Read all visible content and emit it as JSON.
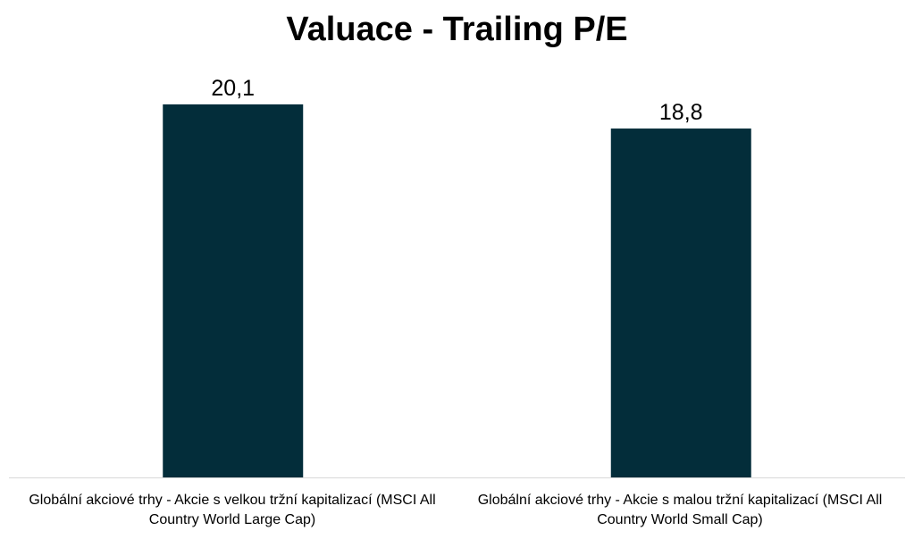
{
  "chart_data": {
    "type": "bar",
    "title": "Valuace - Trailing P/E",
    "xlabel": "",
    "ylabel": "",
    "categories": [
      "Globální akciové trhy - Akcie s velkou tržní kapitalizací (MSCI All Country World Large Cap)",
      "Globální akciové trhy - Akcie s malou tržní kapitalizací (MSCI All Country World Small Cap)"
    ],
    "values": [
      20.1,
      18.8
    ],
    "data_labels": [
      "20,1",
      "18,8"
    ],
    "ylim": [
      0,
      20.1
    ],
    "grid": false,
    "legend": "none",
    "bar_color": "#032d3a",
    "axis_color": "#d9d9d9"
  }
}
